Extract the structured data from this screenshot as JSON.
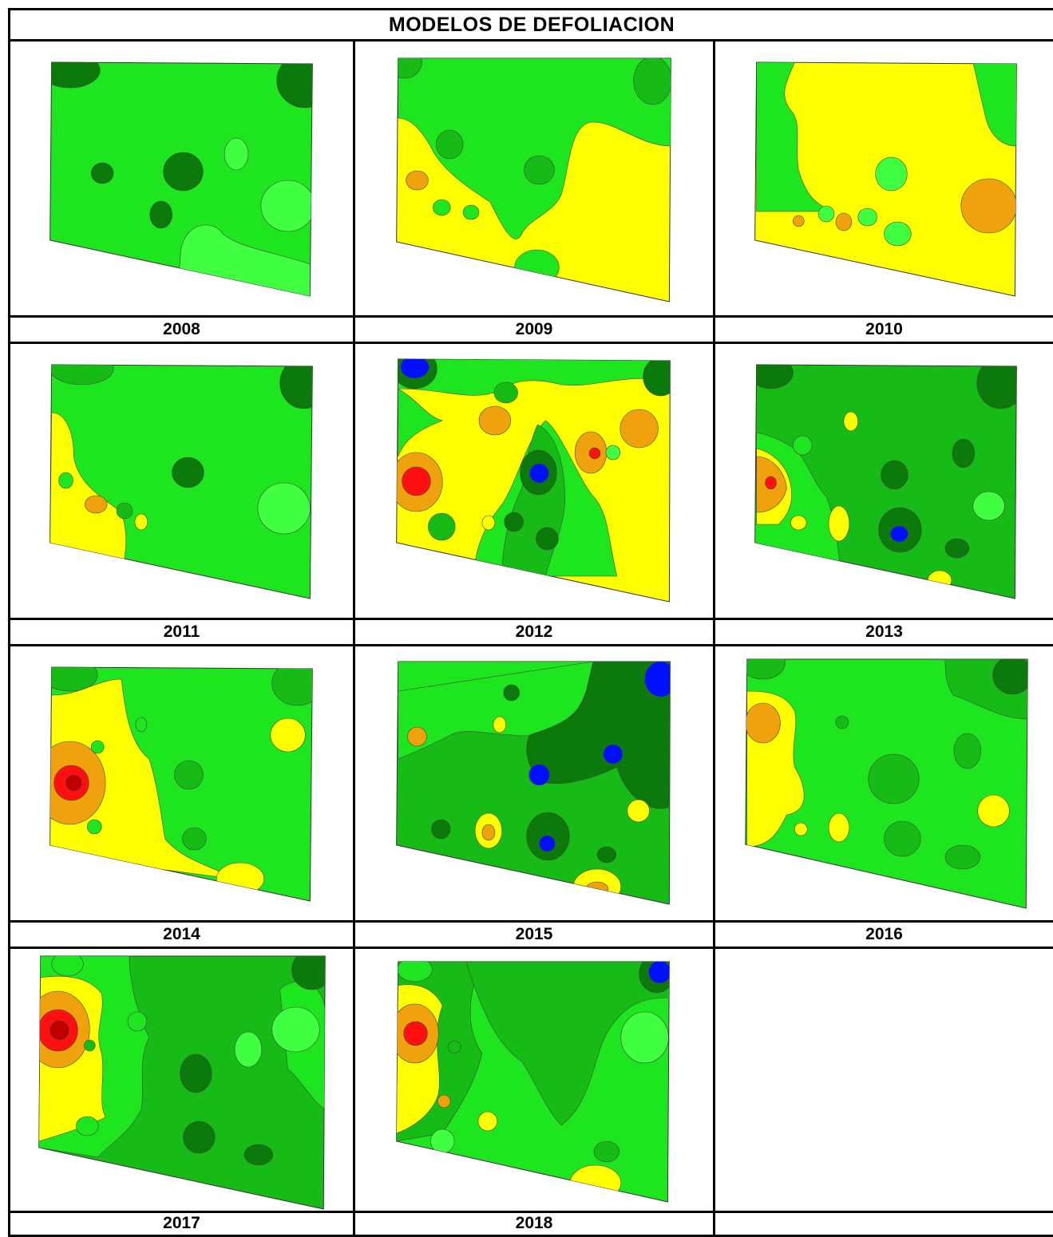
{
  "title": "MODELOS DE DEFOLIACION",
  "colors": {
    "dark_green": "#0b7a0b",
    "mid_green": "#16bb16",
    "green": "#1ee61e",
    "light_green": "#40ff40",
    "yellow": "#ffff00",
    "orange": "#f0a20c",
    "red": "#ff1010",
    "blue": "#0010ff",
    "outline": "#444444"
  },
  "panels": [
    {
      "year": "2008"
    },
    {
      "year": "2009"
    },
    {
      "year": "2010"
    },
    {
      "year": "2011"
    },
    {
      "year": "2012"
    },
    {
      "year": "2013"
    },
    {
      "year": "2014"
    },
    {
      "year": "2015"
    },
    {
      "year": "2016"
    },
    {
      "year": "2017"
    },
    {
      "year": "2018"
    }
  ]
}
